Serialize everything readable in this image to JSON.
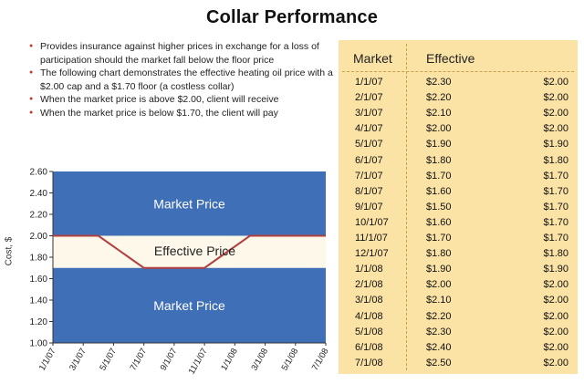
{
  "title": "Collar Performance",
  "bullets": [
    "Provides insurance against higher prices in exchange for a loss of participation should the market fall below the floor price",
    "The following chart demonstrates the effective heating oil price with a $2.00 cap and a $1.70 floor (a costless collar)",
    "When the market price is above $2.00, client will receive",
    "When the market price is below $1.70, the client will pay"
  ],
  "table": {
    "headers": [
      "Market",
      "Effective"
    ],
    "rows": [
      [
        "1/1/07",
        "$2.30",
        "$2.00"
      ],
      [
        "2/1/07",
        "$2.20",
        "$2.00"
      ],
      [
        "3/1/07",
        "$2.10",
        "$2.00"
      ],
      [
        "4/1/07",
        "$2.00",
        "$2.00"
      ],
      [
        "5/1/07",
        "$1.90",
        "$1.90"
      ],
      [
        "6/1/07",
        "$1.80",
        "$1.80"
      ],
      [
        "7/1/07",
        "$1.70",
        "$1.70"
      ],
      [
        "8/1/07",
        "$1.60",
        "$1.70"
      ],
      [
        "9/1/07",
        "$1.50",
        "$1.70"
      ],
      [
        "10/1/07",
        "$1.60",
        "$1.70"
      ],
      [
        "11/1/07",
        "$1.70",
        "$1.70"
      ],
      [
        "12/1/07",
        "$1.80",
        "$1.80"
      ],
      [
        "1/1/08",
        "$1.90",
        "$1.90"
      ],
      [
        "2/1/08",
        "$2.00",
        "$2.00"
      ],
      [
        "3/1/08",
        "$2.10",
        "$2.00"
      ],
      [
        "4/1/08",
        "$2.20",
        "$2.00"
      ],
      [
        "5/1/08",
        "$2.30",
        "$2.00"
      ],
      [
        "6/1/08",
        "$2.40",
        "$2.00"
      ],
      [
        "7/1/08",
        "$2.50",
        "$2.00"
      ]
    ]
  },
  "chart_data": {
    "type": "area",
    "ylabel": "Cost, $",
    "ylim": [
      1.0,
      2.6
    ],
    "yticks": [
      "1.00",
      "1.20",
      "1.40",
      "1.60",
      "1.80",
      "2.00",
      "2.20",
      "2.40",
      "2.60"
    ],
    "yticks_values": [
      1.0,
      1.2,
      1.4,
      1.6,
      1.8,
      2.0,
      2.2,
      2.4,
      2.6
    ],
    "cap": 2.0,
    "floor": 1.7,
    "x": [
      "1/1/07",
      "2/1/07",
      "3/1/07",
      "4/1/07",
      "5/1/07",
      "6/1/07",
      "7/1/07",
      "8/1/07",
      "9/1/07",
      "10/1/07",
      "11/1/07",
      "12/1/07",
      "1/1/08",
      "2/1/08",
      "3/1/08",
      "4/1/08",
      "5/1/08",
      "6/1/08",
      "7/1/08"
    ],
    "xtick_labels": [
      "1/1/07",
      "3/1/07",
      "5/1/07",
      "7/1/07",
      "9/1/07",
      "11/1/07",
      "1/1/08",
      "3/1/08",
      "5/1/08",
      "7/1/08"
    ],
    "series": [
      {
        "values": [
          2.0,
          2.0,
          2.0,
          2.0,
          1.9,
          1.8,
          1.7,
          1.7,
          1.7,
          1.7,
          1.7,
          1.8,
          1.9,
          2.0,
          2.0,
          2.0,
          2.0,
          2.0,
          2.0
        ]
      }
    ],
    "region_labels": [
      "Market Price",
      "Effective Price",
      "Market Price"
    ],
    "colors": {
      "band": "#3f6fb6",
      "line": "#b0413e",
      "band_text": "#ffffff",
      "middle": "#fdf8ea",
      "grid": "#9aa8c8"
    }
  }
}
